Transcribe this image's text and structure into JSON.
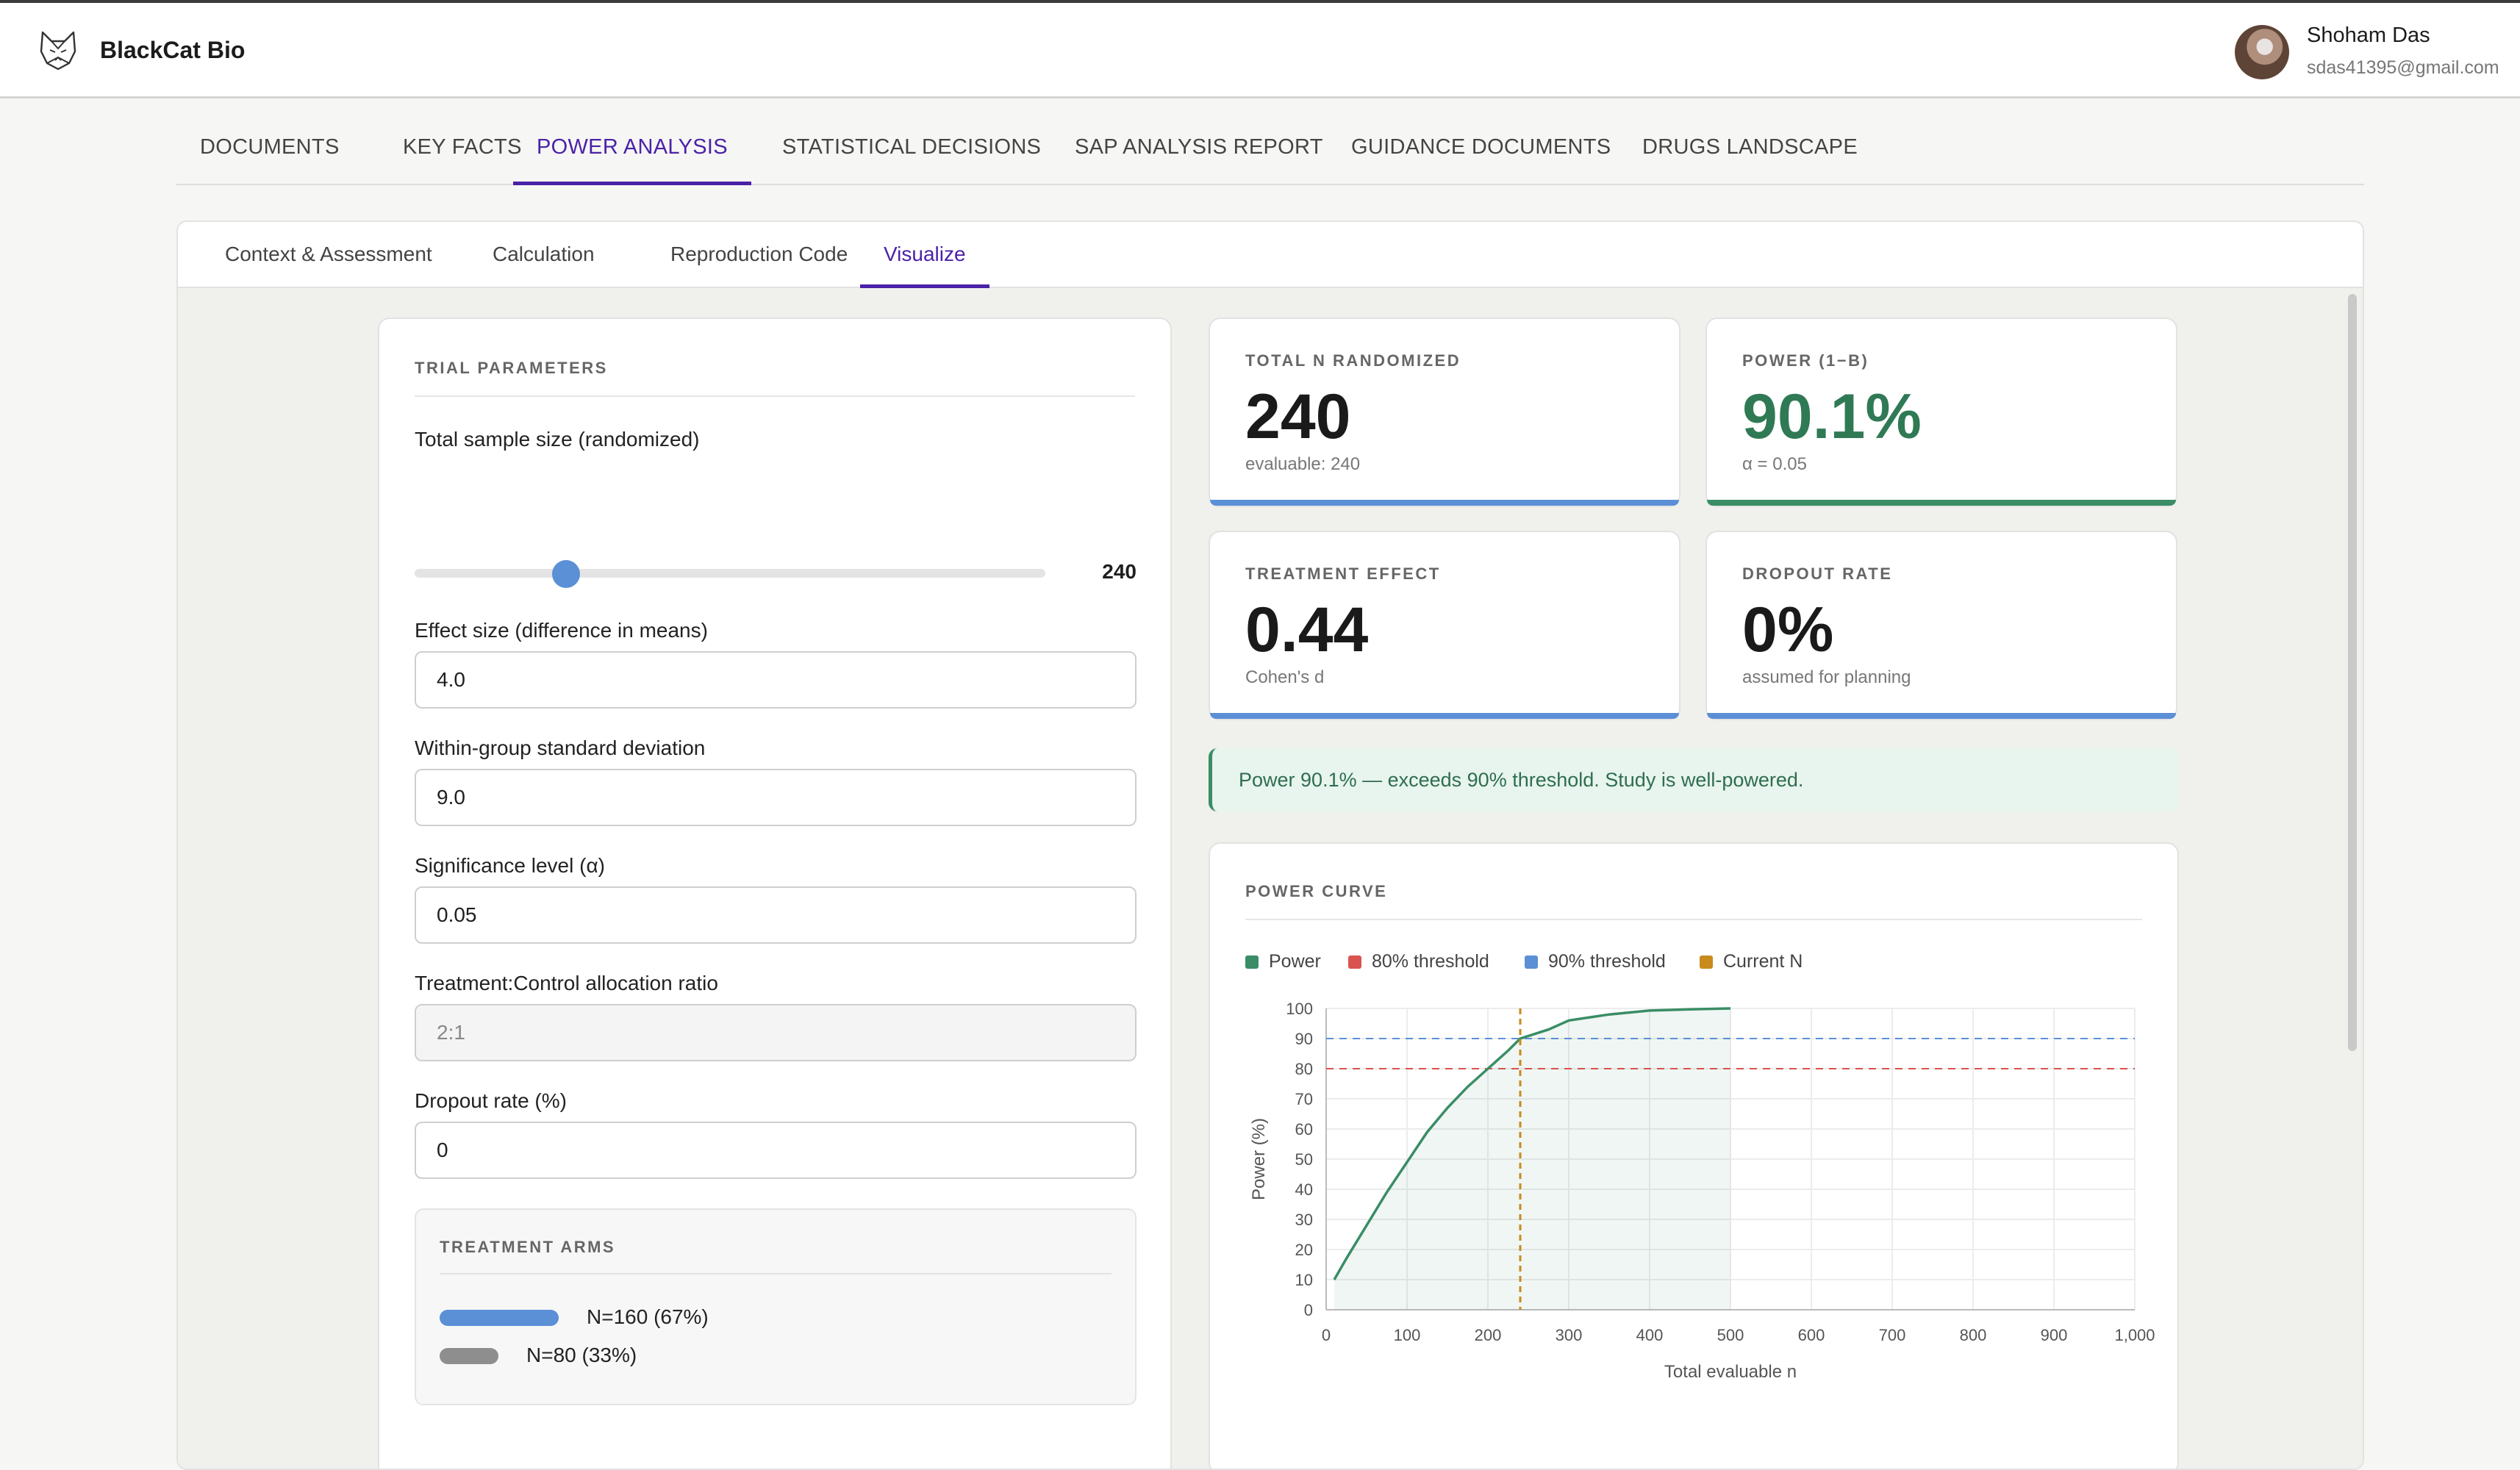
{
  "app": {
    "brand": "BlackCat Bio",
    "logo_icon": "cat-logo-icon"
  },
  "user": {
    "name": "Shoham Das",
    "email": "sdas41395@gmail.com"
  },
  "main_tabs": [
    {
      "label": "DOCUMENTS"
    },
    {
      "label": "KEY FACTS"
    },
    {
      "label": "POWER ANALYSIS",
      "active": true
    },
    {
      "label": "STATISTICAL DECISIONS"
    },
    {
      "label": "SAP ANALYSIS REPORT"
    },
    {
      "label": "GUIDANCE DOCUMENTS"
    },
    {
      "label": "DRUGS LANDSCAPE"
    }
  ],
  "sub_tabs": [
    {
      "label": "Context & Assessment"
    },
    {
      "label": "Calculation"
    },
    {
      "label": "Reproduction Code"
    },
    {
      "label": "Visualize",
      "active": true
    }
  ],
  "params": {
    "title": "TRIAL PARAMETERS",
    "sample_size_label": "Total sample size (randomized)",
    "sample_size_value": "240",
    "sample_size_fraction": 0.24,
    "effect_label": "Effect size (difference in means)",
    "effect_value": "4.0",
    "sd_label": "Within-group standard deviation",
    "sd_value": "9.0",
    "alpha_label": "Significance level (α)",
    "alpha_value": "0.05",
    "ratio_label": "Treatment:Control allocation ratio",
    "ratio_value": "2:1",
    "dropout_label": "Dropout rate (%)",
    "dropout_value": "0",
    "arms_title": "TREATMENT ARMS",
    "arms": [
      {
        "label": "N=160 (67%)",
        "color": "#5b8fd6",
        "share": 0.67
      },
      {
        "label": "N=80 (33%)",
        "color": "#8e8e8e",
        "share": 0.33
      }
    ]
  },
  "stats": {
    "total_n": {
      "title": "TOTAL N RANDOMIZED",
      "value": "240",
      "sub": "evaluable: 240",
      "accent": "#5b8fd6"
    },
    "power": {
      "title": "POWER (1−Β)",
      "value": "90.1%",
      "sub": "α = 0.05",
      "accent": "#3a8d66",
      "value_color": "#2f7a55"
    },
    "effect": {
      "title": "TREATMENT EFFECT",
      "value": "0.44",
      "sub": "Cohen's d",
      "accent": "#5b8fd6"
    },
    "dropout": {
      "title": "DROPOUT RATE",
      "value": "0%",
      "sub": "assumed for planning",
      "accent": "#5b8fd6"
    }
  },
  "alert": {
    "text": "Power 90.1% — exceeds 90% threshold. Study is well-powered."
  },
  "chart_data": {
    "type": "line",
    "title": "POWER CURVE",
    "xlabel": "Total evaluable n",
    "ylabel": "Power (%)",
    "xlim": [
      0,
      1000
    ],
    "ylim": [
      0,
      100
    ],
    "x_ticks": [
      "0",
      "100",
      "200",
      "300",
      "400",
      "500",
      "600",
      "700",
      "800",
      "900",
      "1,000"
    ],
    "y_ticks": [
      "0",
      "10",
      "20",
      "30",
      "40",
      "50",
      "60",
      "70",
      "80",
      "90",
      "100"
    ],
    "grid": true,
    "legend_position": "top-left",
    "legend": [
      {
        "name": "Power",
        "color": "#3a8d66"
      },
      {
        "name": "80% threshold",
        "color": "#d9534f"
      },
      {
        "name": "90% threshold",
        "color": "#5b8fd6"
      },
      {
        "name": "Current N",
        "color": "#c98a1e"
      }
    ],
    "series": [
      {
        "name": "Power",
        "x": [
          10,
          25,
          50,
          75,
          100,
          125,
          150,
          175,
          200,
          225,
          240,
          275,
          300,
          350,
          400,
          450,
          500
        ],
        "y": [
          10,
          17,
          28,
          39,
          49,
          59,
          67,
          74,
          80,
          86,
          90,
          93,
          96,
          98,
          99.3,
          99.7,
          100
        ]
      }
    ],
    "thresholds": [
      {
        "name": "80% threshold",
        "y": 80
      },
      {
        "name": "90% threshold",
        "y": 90
      }
    ],
    "current_n": {
      "name": "Current N",
      "x": 240
    }
  }
}
